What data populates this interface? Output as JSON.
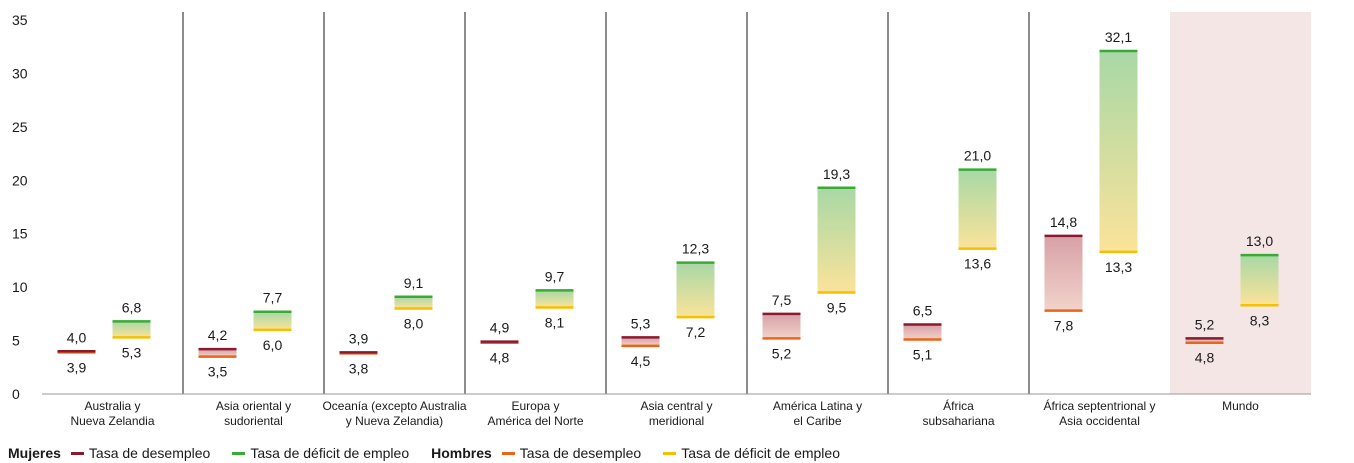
{
  "chart_data": {
    "type": "range-bar",
    "y_ticks": [
      "0",
      "5",
      "10",
      "15",
      "20",
      "25",
      "30",
      "35"
    ],
    "ylim": [
      0,
      35
    ],
    "grid": false,
    "categories": [
      {
        "label": [
          "Australia y",
          "Nueva Zelandia"
        ],
        "highlight": false
      },
      {
        "label": [
          "Asia oriental y",
          "sudoriental"
        ],
        "highlight": false
      },
      {
        "label": [
          "Oceanía (excepto Australia",
          "y Nueva Zelandia)"
        ],
        "highlight": false
      },
      {
        "label": [
          "Europa y",
          "América del Norte"
        ],
        "highlight": false
      },
      {
        "label": [
          "Asia central y",
          "meridional"
        ],
        "highlight": false
      },
      {
        "label": [
          "América Latina y",
          "el Caribe"
        ],
        "highlight": false
      },
      {
        "label": [
          "África",
          "subsahariana"
        ],
        "highlight": false
      },
      {
        "label": [
          "África septentrional y",
          "Asia occidental"
        ],
        "highlight": false
      },
      {
        "label": [
          "Mundo"
        ],
        "highlight": true
      }
    ],
    "series": [
      {
        "group": "Mujeres",
        "name": "Tasa de desempleo",
        "color": "#8b1a2f",
        "values": [
          4.0,
          4.2,
          3.9,
          4.9,
          5.3,
          7.5,
          6.5,
          14.8,
          5.2
        ],
        "labels": [
          "4,0",
          "4,2",
          "3,9",
          "4,9",
          "5,3",
          "7,5",
          "6,5",
          "14,8",
          "5,2"
        ]
      },
      {
        "group": "Mujeres",
        "name": "Tasa de déficit de empleo",
        "color": "#3aaa35",
        "values": [
          6.8,
          7.7,
          9.1,
          9.7,
          12.3,
          19.3,
          21.0,
          32.1,
          13.0
        ],
        "labels": [
          "6,8",
          "7,7",
          "9,1",
          "9,7",
          "12,3",
          "19,3",
          "21,0",
          "32,1",
          "13,0"
        ]
      },
      {
        "group": "Hombres",
        "name": "Tasa de desempleo",
        "color": "#e8651a",
        "values": [
          3.9,
          3.5,
          3.8,
          4.8,
          4.5,
          5.2,
          5.1,
          7.8,
          4.8
        ],
        "labels": [
          "3,9",
          "3,5",
          "3,8",
          "4,8",
          "4,5",
          "5,2",
          "5,1",
          "7,8",
          "4,8"
        ]
      },
      {
        "group": "Hombres",
        "name": "Tasa de déficit de empleo",
        "color": "#f5c000",
        "values": [
          5.3,
          6.0,
          8.0,
          8.1,
          7.2,
          9.5,
          13.6,
          13.3,
          8.3
        ],
        "labels": [
          "5,3",
          "6,0",
          "8,0",
          "8,1",
          "7,2",
          "9,5",
          "13,6",
          "13,3",
          "8,3"
        ]
      }
    ],
    "highlight_color": "#f5e6e6",
    "legend": [
      {
        "group": "Mujeres",
        "items": [
          {
            "label": "Tasa de desempleo",
            "color": "#8b1a2f"
          },
          {
            "label": "Tasa de déficit de empleo",
            "color": "#3aaa35"
          }
        ]
      },
      {
        "group": "Hombres",
        "items": [
          {
            "label": "Tasa de desempleo",
            "color": "#e8651a"
          },
          {
            "label": "Tasa de déficit de empleo",
            "color": "#f5c000"
          }
        ]
      }
    ],
    "legend_position": "bottom"
  }
}
